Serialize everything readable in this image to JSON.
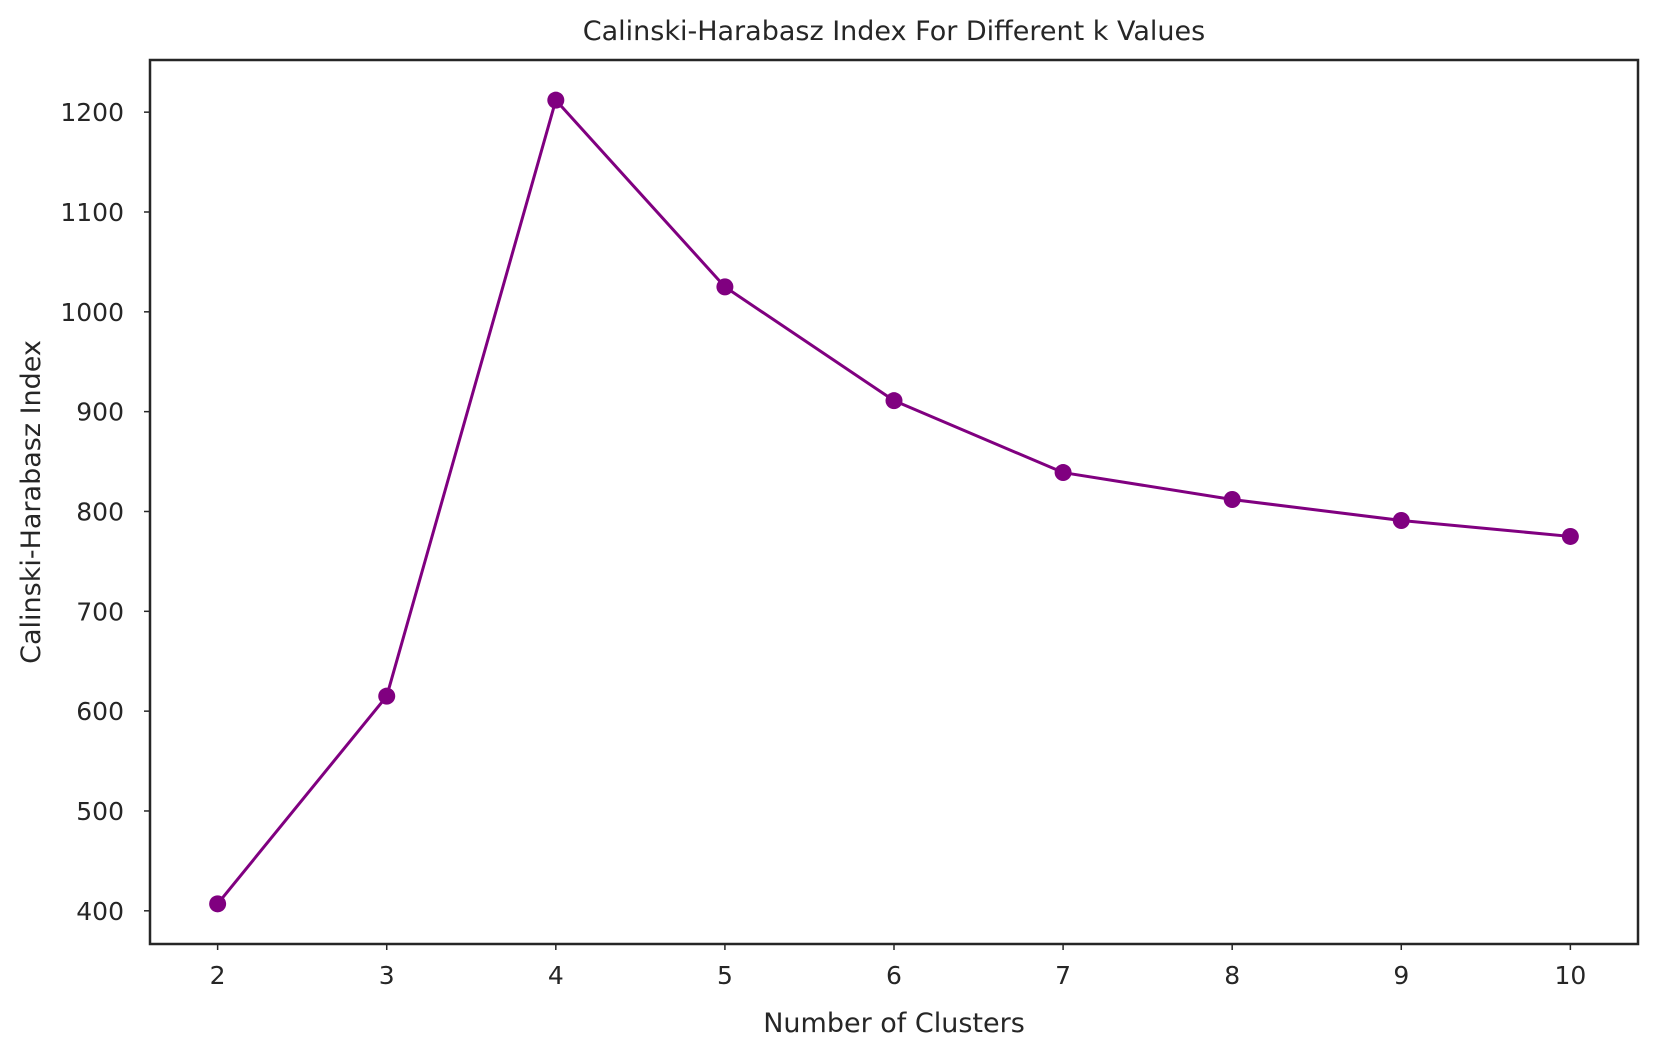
{
  "chart_data": {
    "type": "line",
    "title": "Calinski-Harabasz Index For Different k Values",
    "xlabel": "Number of Clusters",
    "ylabel": "Calinski-Harabasz Index",
    "x": [
      2,
      3,
      4,
      5,
      6,
      7,
      8,
      9,
      10
    ],
    "series": [
      {
        "values": [
          407,
          615,
          1212,
          1025,
          911,
          839,
          812,
          791,
          775
        ],
        "color": "#800080",
        "marker": "circle"
      }
    ],
    "xticks": [
      2,
      3,
      4,
      5,
      6,
      7,
      8,
      9,
      10
    ],
    "yticks": [
      400,
      500,
      600,
      700,
      800,
      900,
      1000,
      1100,
      1200
    ],
    "xlim": [
      1.6,
      10.4
    ],
    "ylim": [
      366.75,
      1252.25
    ],
    "grid": false,
    "legend": "none"
  }
}
